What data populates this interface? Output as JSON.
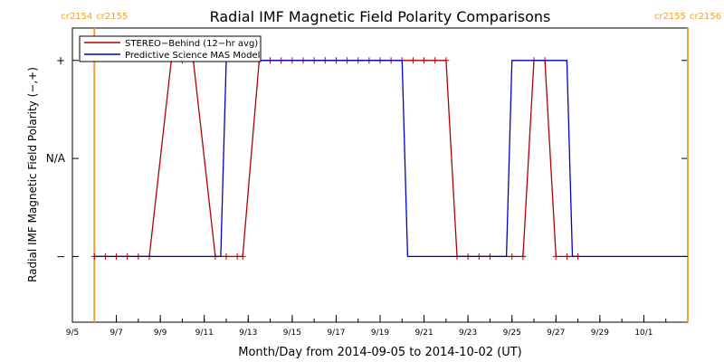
{
  "chart_data": {
    "type": "line",
    "title": "Radial IMF Magnetic Field Polarity Comparisons",
    "xlabel": "Month/Day from 2014-09-05 to 2014-10-02 (UT)",
    "ylabel": "Radial IMF Magnetic Field Polarity (−,+)",
    "x_unit": "day",
    "xlim": [
      "2014-09-05",
      "2014-10-03"
    ],
    "ylim": [
      -1.67,
      1.33
    ],
    "y_ticks": [
      {
        "value": 1,
        "label": "+"
      },
      {
        "value": 0,
        "label": "N/A"
      },
      {
        "value": -1,
        "label": "−"
      }
    ],
    "x_ticks": [
      {
        "date": "2014-09-05",
        "label": "9/5"
      },
      {
        "date": "2014-09-07",
        "label": "9/7"
      },
      {
        "date": "2014-09-09",
        "label": "9/9"
      },
      {
        "date": "2014-09-11",
        "label": "9/11"
      },
      {
        "date": "2014-09-13",
        "label": "9/13"
      },
      {
        "date": "2014-09-15",
        "label": "9/15"
      },
      {
        "date": "2014-09-17",
        "label": "9/17"
      },
      {
        "date": "2014-09-19",
        "label": "9/19"
      },
      {
        "date": "2014-09-21",
        "label": "9/21"
      },
      {
        "date": "2014-09-23",
        "label": "9/23"
      },
      {
        "date": "2014-09-25",
        "label": "9/25"
      },
      {
        "date": "2014-09-27",
        "label": "9/27"
      },
      {
        "date": "2014-09-29",
        "label": "9/29"
      },
      {
        "date": "2014-10-01",
        "label": "10/1"
      }
    ],
    "carrington_markers": [
      {
        "date": "2014-09-06 00:00",
        "label_left": "cr2154",
        "label_right": "cr2155",
        "color": "#f0a030"
      },
      {
        "date": "2014-10-03 00:00",
        "label_left": "cr2155",
        "label_right": "cr2156",
        "color": "#f0a030"
      }
    ],
    "series": [
      {
        "name": "STEREO−Behind (12−hr avg)",
        "color": "#b00000",
        "marker": "+",
        "points": [
          [
            "2014-09-06 00:00",
            -1
          ],
          [
            "2014-09-06 12:00",
            -1
          ],
          [
            "2014-09-07 00:00",
            -1
          ],
          [
            "2014-09-07 12:00",
            -1
          ],
          [
            "2014-09-08 00:00",
            -1
          ],
          [
            "2014-09-08 12:00",
            -1
          ],
          [
            "2014-09-09 12:00",
            1
          ],
          [
            "2014-09-10 00:00",
            1
          ],
          [
            "2014-09-10 12:00",
            1
          ],
          [
            "2014-09-11 12:00",
            -1
          ],
          [
            "2014-09-12 00:00",
            -1
          ],
          [
            "2014-09-12 12:00",
            -1
          ],
          [
            "2014-09-12 18:00",
            -1
          ],
          [
            "2014-09-13 12:00",
            1
          ],
          [
            "2014-09-14 00:00",
            1
          ],
          [
            "2014-09-14 12:00",
            1
          ],
          [
            "2014-09-15 00:00",
            1
          ],
          [
            "2014-09-15 12:00",
            1
          ],
          [
            "2014-09-16 00:00",
            1
          ],
          [
            "2014-09-16 12:00",
            1
          ],
          [
            "2014-09-17 00:00",
            1
          ],
          [
            "2014-09-17 12:00",
            1
          ],
          [
            "2014-09-18 00:00",
            1
          ],
          [
            "2014-09-18 12:00",
            1
          ],
          [
            "2014-09-19 00:00",
            1
          ],
          [
            "2014-09-19 12:00",
            1
          ],
          [
            "2014-09-20 00:00",
            1
          ],
          [
            "2014-09-20 12:00",
            1
          ],
          [
            "2014-09-21 00:00",
            1
          ],
          [
            "2014-09-21 12:00",
            1
          ],
          [
            "2014-09-22 00:00",
            1
          ],
          [
            "2014-09-22 12:00",
            -1
          ],
          [
            "2014-09-23 00:00",
            -1
          ],
          [
            "2014-09-23 12:00",
            -1
          ],
          [
            "2014-09-24 00:00",
            -1
          ],
          [
            "2014-09-25 00:00",
            -1
          ],
          [
            "2014-09-25 12:00",
            -1
          ],
          [
            "2014-09-26 00:00",
            1
          ],
          [
            "2014-09-26 12:00",
            1
          ],
          [
            "2014-09-27 00:00",
            -1
          ],
          [
            "2014-09-27 12:00",
            -1
          ],
          [
            "2014-09-28 00:00",
            -1
          ]
        ]
      },
      {
        "name": "Predictive Science MAS Model",
        "color": "#0000c8",
        "marker": "none",
        "points": [
          [
            "2014-09-06 00:00",
            -1
          ],
          [
            "2014-09-11 18:00",
            -1
          ],
          [
            "2014-09-12 00:00",
            1
          ],
          [
            "2014-09-12 06:00",
            1
          ],
          [
            "2014-09-12 08:00",
            1
          ],
          [
            "2014-09-20 00:00",
            1
          ],
          [
            "2014-09-20 06:00",
            -1
          ],
          [
            "2014-09-24 18:00",
            -1
          ],
          [
            "2014-09-25 00:00",
            1
          ],
          [
            "2014-09-27 12:00",
            1
          ],
          [
            "2014-09-27 18:00",
            -1
          ],
          [
            "2014-10-03 00:00",
            -1
          ]
        ]
      }
    ],
    "legend": {
      "placement": "top-left"
    },
    "grid": false
  }
}
